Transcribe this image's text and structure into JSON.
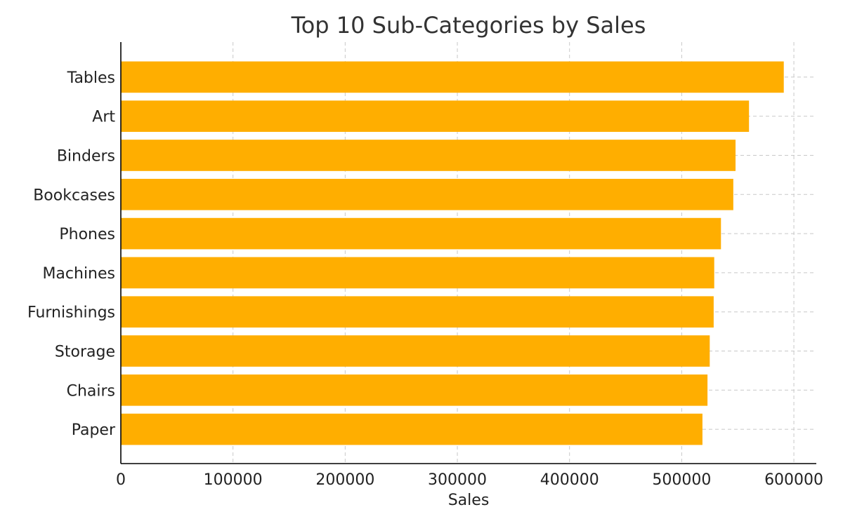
{
  "chart_data": {
    "type": "bar",
    "orientation": "horizontal",
    "title": "Top 10 Sub-Categories by Sales",
    "xlabel": "Sales",
    "ylabel": "",
    "categories": [
      "Tables",
      "Art",
      "Binders",
      "Bookcases",
      "Phones",
      "Machines",
      "Furnishings",
      "Storage",
      "Chairs",
      "Paper"
    ],
    "values": [
      591000,
      560000,
      548000,
      546000,
      535000,
      529000,
      528500,
      525000,
      523000,
      518500
    ],
    "xlim": [
      0,
      620000
    ],
    "xticks": [
      0,
      100000,
      200000,
      300000,
      400000,
      500000,
      600000
    ],
    "xtick_labels": [
      "0",
      "100000",
      "200000",
      "300000",
      "400000",
      "500000",
      "600000"
    ],
    "grid": true,
    "colors": {
      "bar": "#FFAE00",
      "grid": "#c8c8c8",
      "axis": "#000000",
      "title": "#333333"
    }
  }
}
